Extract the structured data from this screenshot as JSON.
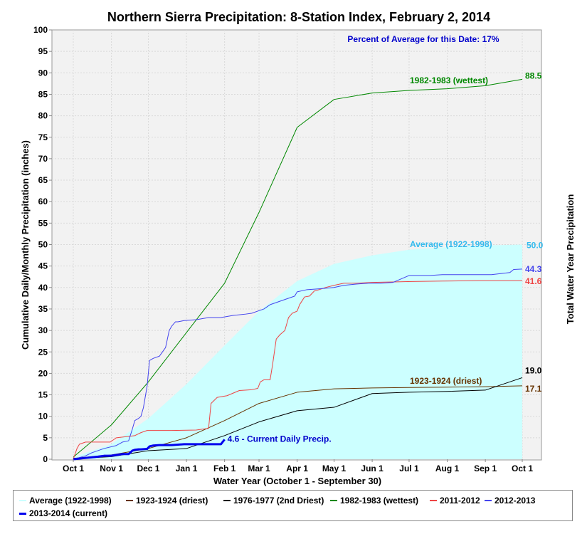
{
  "chart_data": {
    "type": "line",
    "title": "Northern Sierra Precipitation: 8-Station Index, February 2, 2014",
    "xlabel": "Water Year (October 1 - September 30)",
    "ylabel": "Cumulative Daily/Monthly Precipitation (inches)",
    "y2label": "Total Water Year Precipitation",
    "percent_note": "Percent of Average for this Date: 17%",
    "xlim": [
      0,
      365
    ],
    "ylim": [
      0,
      100
    ],
    "y_ticks": [
      0,
      5,
      10,
      15,
      20,
      25,
      30,
      35,
      40,
      45,
      50,
      55,
      60,
      65,
      70,
      75,
      80,
      85,
      90,
      95,
      100
    ],
    "x_ticks": [
      {
        "label": "Oct 1",
        "day": 0
      },
      {
        "label": "Nov 1",
        "day": 31
      },
      {
        "label": "Dec 1",
        "day": 61
      },
      {
        "label": "Jan 1",
        "day": 92
      },
      {
        "label": "Feb 1",
        "day": 123
      },
      {
        "label": "Mar 1",
        "day": 151
      },
      {
        "label": "Apr 1",
        "day": 182
      },
      {
        "label": "May 1",
        "day": 212
      },
      {
        "label": "Jun 1",
        "day": 243
      },
      {
        "label": "Jul 1",
        "day": 273
      },
      {
        "label": "Aug 1",
        "day": 304
      },
      {
        "label": "Sep 1",
        "day": 335
      },
      {
        "label": "Oct 1",
        "day": 365
      }
    ],
    "grid": true,
    "legend_position": "bottom",
    "series": [
      {
        "name": "Average (1922-1998)",
        "style": "area",
        "color": "#ccffff",
        "label_color": "#33bbee",
        "end_label": "50.0",
        "curve_label": "Average (1922-1998)",
        "x": [
          0,
          31,
          61,
          92,
          123,
          151,
          182,
          212,
          243,
          273,
          304,
          335,
          365
        ],
        "y": [
          0.5,
          3.5,
          9.5,
          17.5,
          26.5,
          34.5,
          41.5,
          45.5,
          47.5,
          48.8,
          49.4,
          49.8,
          50.0
        ]
      },
      {
        "name": "1923-1924 (driest)",
        "style": "line",
        "color": "#663300",
        "end_label": "17.1",
        "curve_label": "1923-1924 (driest)",
        "x": [
          0,
          31,
          61,
          92,
          123,
          151,
          182,
          212,
          243,
          273,
          304,
          335,
          365
        ],
        "y": [
          0.2,
          1.0,
          2.5,
          5.0,
          9.0,
          13.0,
          15.6,
          16.4,
          16.6,
          16.7,
          16.8,
          16.9,
          17.1
        ]
      },
      {
        "name": "1976-1977 (2nd Driest)",
        "style": "line",
        "color": "#000000",
        "end_label": "19.0",
        "x": [
          0,
          31,
          61,
          92,
          123,
          151,
          182,
          212,
          243,
          273,
          304,
          335,
          365
        ],
        "y": [
          0.1,
          0.6,
          2.0,
          2.5,
          5.5,
          8.7,
          11.3,
          12.1,
          15.3,
          15.6,
          15.8,
          16.1,
          19.0
        ]
      },
      {
        "name": "1982-1983 (wettest)",
        "style": "line",
        "color": "#008800",
        "end_label": "88.5",
        "curve_label": "1982-1983 (wettest)",
        "x": [
          0,
          31,
          61,
          92,
          123,
          151,
          182,
          212,
          243,
          273,
          304,
          335,
          365
        ],
        "y": [
          0.5,
          8.0,
          18.0,
          29.5,
          41.0,
          57.5,
          77.3,
          83.8,
          85.3,
          85.9,
          86.3,
          87.0,
          88.5
        ]
      },
      {
        "name": "2011-2012",
        "style": "line",
        "color": "#ee4444",
        "end_label": "41.6",
        "x": [
          0,
          3,
          5,
          10,
          30,
          35,
          50,
          55,
          60,
          80,
          100,
          105,
          110,
          112,
          117,
          125,
          135,
          145,
          150,
          152,
          155,
          160,
          162,
          165,
          168,
          172,
          175,
          178,
          182,
          184,
          188,
          192,
          196,
          200,
          205,
          212,
          220,
          230,
          243,
          260,
          275,
          300,
          330,
          365
        ],
        "y": [
          0,
          2.5,
          3.5,
          4.0,
          4.0,
          5.0,
          5.5,
          6.2,
          6.7,
          6.7,
          6.8,
          7.0,
          7.2,
          13.0,
          14.4,
          14.8,
          16.0,
          16.2,
          16.5,
          18.0,
          18.5,
          18.5,
          22.0,
          28.0,
          29.0,
          30.0,
          33.0,
          34.0,
          34.5,
          36.0,
          37.8,
          38.0,
          39.2,
          39.5,
          40.0,
          40.5,
          41.0,
          41.0,
          41.2,
          41.3,
          41.4,
          41.5,
          41.6,
          41.6
        ]
      },
      {
        "name": "2012-2013",
        "style": "line",
        "color": "#4444ee",
        "end_label": "44.3",
        "x": [
          0,
          10,
          15,
          25,
          35,
          40,
          45,
          48,
          50,
          53,
          55,
          57,
          60,
          62,
          65,
          70,
          75,
          78,
          80,
          83,
          85,
          90,
          100,
          110,
          120,
          130,
          140,
          145,
          150,
          155,
          160,
          170,
          180,
          182,
          190,
          200,
          212,
          220,
          230,
          240,
          250,
          260,
          273,
          290,
          300,
          320,
          340,
          355,
          358,
          365
        ],
        "y": [
          0,
          0.8,
          1.5,
          2.5,
          3.2,
          4.0,
          4.3,
          7.0,
          9.0,
          9.5,
          10.0,
          12.0,
          17.0,
          23.0,
          23.5,
          24.0,
          26.0,
          30.0,
          31.0,
          32.0,
          32.0,
          32.3,
          32.5,
          33.0,
          33.0,
          33.5,
          33.8,
          34.0,
          34.5,
          35.0,
          36.0,
          37.0,
          38.0,
          39.0,
          39.5,
          39.7,
          40.0,
          40.5,
          40.8,
          41.0,
          41.0,
          41.2,
          42.8,
          42.8,
          43.0,
          43.0,
          43.0,
          43.5,
          44.2,
          44.3
        ]
      },
      {
        "name": "2013-2014 (current)",
        "style": "line",
        "color": "#0000ee",
        "width": 3,
        "end_label": "4.6 -  Current Daily Precip.",
        "x": [
          0,
          10,
          20,
          25,
          30,
          35,
          40,
          45,
          48,
          50,
          53,
          55,
          60,
          62,
          65,
          70,
          75,
          80,
          85,
          90,
          100,
          110,
          120,
          123
        ],
        "y": [
          0,
          0.3,
          0.6,
          0.8,
          0.8,
          1.0,
          1.2,
          1.2,
          2.0,
          2.2,
          2.3,
          2.3,
          2.4,
          3.0,
          3.2,
          3.3,
          3.3,
          3.3,
          3.4,
          3.5,
          3.5,
          3.5,
          3.5,
          4.6
        ]
      }
    ]
  }
}
